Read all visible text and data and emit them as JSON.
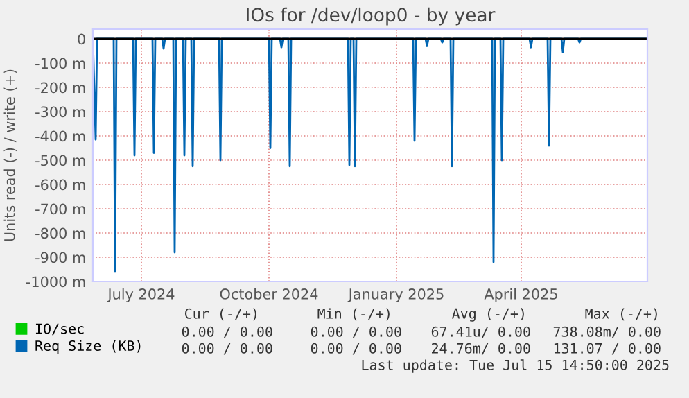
{
  "chart_data": {
    "type": "line",
    "title": "IOs for /dev/loop0 - by year",
    "ylabel": "Units read (-) / write (+)",
    "xlim": [
      "2024-06-10",
      "2025-07-15"
    ],
    "xticks": [
      {
        "value": "2024-07-15",
        "label": "July 2024"
      },
      {
        "value": "2024-10-15",
        "label": "October 2024"
      },
      {
        "value": "2025-01-15",
        "label": "January 2025"
      },
      {
        "value": "2025-04-15",
        "label": "April 2025"
      }
    ],
    "ylim": [
      -1000,
      40
    ],
    "yticks": [
      {
        "value": 0,
        "label": "0"
      },
      {
        "value": -100,
        "label": "-100 m"
      },
      {
        "value": -200,
        "label": "-200 m"
      },
      {
        "value": -300,
        "label": "-300 m"
      },
      {
        "value": -400,
        "label": "-400 m"
      },
      {
        "value": -500,
        "label": "-500 m"
      },
      {
        "value": -600,
        "label": "-600 m"
      },
      {
        "value": -700,
        "label": "-700 m"
      },
      {
        "value": -800,
        "label": "-800 m"
      },
      {
        "value": -900,
        "label": "-900 m"
      },
      {
        "value": -1000,
        "label": "-1000 m"
      }
    ],
    "grid": true,
    "legend": "bottom left",
    "series": [
      {
        "name": "IO/sec",
        "color": "#00cc00"
      },
      {
        "name": "Req Size (KB)",
        "color": "#0066b3",
        "x": [
          "2024-06-10",
          "2024-06-12",
          "2024-06-13",
          "2024-06-25",
          "2024-06-26",
          "2024-06-27",
          "2024-07-09",
          "2024-07-10",
          "2024-07-11",
          "2024-07-23",
          "2024-07-24",
          "2024-07-25",
          "2024-07-30",
          "2024-07-31",
          "2024-08-01",
          "2024-08-07",
          "2024-08-08",
          "2024-08-09",
          "2024-08-14",
          "2024-08-15",
          "2024-08-16",
          "2024-08-20",
          "2024-08-21",
          "2024-08-22",
          "2024-09-09",
          "2024-09-10",
          "2024-09-11",
          "2024-10-15",
          "2024-10-16",
          "2024-10-17",
          "2024-10-23",
          "2024-10-24",
          "2024-10-25",
          "2024-10-29",
          "2024-10-30",
          "2024-10-31",
          "2024-12-11",
          "2024-12-12",
          "2024-12-13",
          "2024-12-15",
          "2024-12-16",
          "2024-12-17",
          "2025-01-27",
          "2025-01-28",
          "2025-01-29",
          "2025-02-05",
          "2025-02-06",
          "2025-02-07",
          "2025-02-16",
          "2025-02-17",
          "2025-02-18",
          "2025-02-23",
          "2025-02-24",
          "2025-02-25",
          "2025-03-25",
          "2025-03-26",
          "2025-03-27",
          "2025-03-31",
          "2025-04-01",
          "2025-04-02",
          "2025-04-21",
          "2025-04-22",
          "2025-04-23",
          "2025-05-04",
          "2025-05-05",
          "2025-05-06",
          "2025-05-14",
          "2025-05-15",
          "2025-05-16",
          "2025-05-26",
          "2025-05-27",
          "2025-05-28",
          "2025-07-15"
        ],
        "values": [
          0,
          -415,
          0,
          0,
          -960,
          0,
          0,
          -480,
          0,
          0,
          -470,
          0,
          0,
          -40,
          0,
          0,
          -880,
          0,
          0,
          -480,
          0,
          0,
          -525,
          0,
          0,
          -500,
          0,
          0,
          -450,
          0,
          0,
          -35,
          0,
          0,
          -525,
          0,
          0,
          -520,
          0,
          0,
          -525,
          0,
          0,
          -420,
          0,
          0,
          -30,
          0,
          0,
          -15,
          0,
          0,
          -525,
          0,
          0,
          -920,
          0,
          0,
          -500,
          0,
          0,
          -35,
          0,
          0,
          -440,
          0,
          0,
          -55,
          0,
          0,
          -15,
          0,
          0
        ]
      }
    ],
    "annotations": [
      "Cur (-/+)",
      "Min (-/+)",
      "Avg (-/+)",
      "Max (-/+)",
      "0.00 / 0.00",
      "0.00 / 0.00",
      "67.41u/ 0.00",
      "738.08m/ 0.00",
      "0.00 / 0.00",
      "0.00 / 0.00",
      "24.76m/ 0.00",
      "131.07 / 0.00",
      "Last update: Tue Jul 15 14:50:00 2025"
    ]
  }
}
